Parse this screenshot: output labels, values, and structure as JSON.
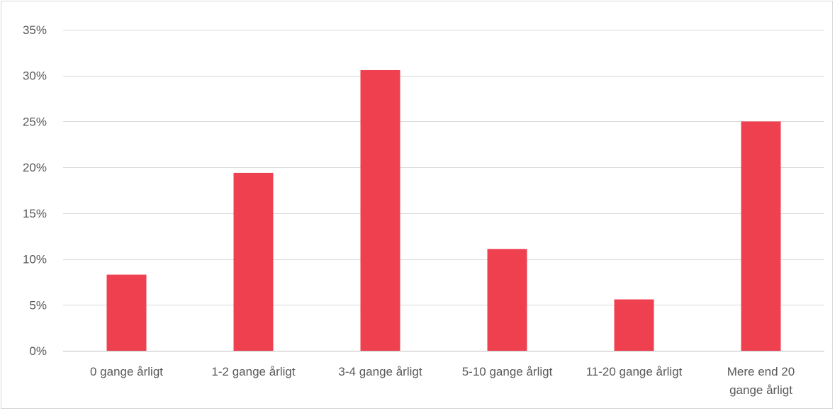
{
  "chart_data": {
    "type": "bar",
    "title": "",
    "xlabel": "",
    "ylabel": "",
    "categories": [
      [
        "0 gange årligt"
      ],
      [
        "1-2 gange årligt"
      ],
      [
        "3-4 gange årligt"
      ],
      [
        "5-10 gange årligt"
      ],
      [
        "11-20 gange årligt"
      ],
      [
        "Mere end 20",
        "gange årligt"
      ]
    ],
    "values": [
      8.3,
      19.4,
      30.6,
      11.1,
      5.6,
      25.0
    ],
    "ylim": [
      0,
      35
    ],
    "yticks": [
      0,
      5,
      10,
      15,
      20,
      25,
      30,
      35
    ],
    "ytick_labels": [
      "0%",
      "5%",
      "10%",
      "15%",
      "20%",
      "25%",
      "30%",
      "35%"
    ],
    "grid": true,
    "legend": "none",
    "colors": {
      "bar": "#ef4050",
      "grid": "#d9d9d9",
      "axis": "#bfbfbf",
      "text": "#595959"
    }
  }
}
